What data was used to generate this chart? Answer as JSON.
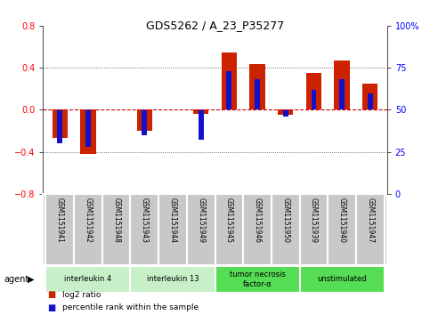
{
  "title": "GDS5262 / A_23_P35277",
  "samples": [
    "GSM1151941",
    "GSM1151942",
    "GSM1151948",
    "GSM1151943",
    "GSM1151944",
    "GSM1151949",
    "GSM1151945",
    "GSM1151946",
    "GSM1151950",
    "GSM1151939",
    "GSM1151940",
    "GSM1151947"
  ],
  "log2_ratio": [
    -0.27,
    -0.42,
    0.0,
    -0.2,
    0.0,
    -0.04,
    0.55,
    0.44,
    -0.05,
    0.35,
    0.47,
    0.25
  ],
  "percentile_rank": [
    30,
    28,
    50,
    35,
    50,
    32,
    73,
    68,
    46,
    62,
    68,
    60
  ],
  "agents": [
    {
      "label": "interleukin 4",
      "start": 0,
      "end": 2,
      "color": "#c8f0c8"
    },
    {
      "label": "interleukin 13",
      "start": 3,
      "end": 5,
      "color": "#c8f0c8"
    },
    {
      "label": "tumor necrosis\nfactor-α",
      "start": 6,
      "end": 8,
      "color": "#55dd55"
    },
    {
      "label": "unstimulated",
      "start": 9,
      "end": 11,
      "color": "#55dd55"
    }
  ],
  "ylim_left": [
    -0.8,
    0.8
  ],
  "ylim_right": [
    0,
    100
  ],
  "yticks_left": [
    -0.8,
    -0.4,
    0.0,
    0.4,
    0.8
  ],
  "yticks_right": [
    0,
    25,
    50,
    75,
    100
  ],
  "bar_color_red": "#cc2200",
  "bar_color_blue": "#1111cc",
  "hline_color": "#cc0000",
  "dotted_line_color": "#444444",
  "bg_color": "#ffffff",
  "plot_bg": "#ffffff",
  "bar_width": 0.55,
  "blue_bar_width": 0.18,
  "sample_bg": "#c8c8c8",
  "legend_red_label": "log2 ratio",
  "legend_blue_label": "percentile rank within the sample"
}
